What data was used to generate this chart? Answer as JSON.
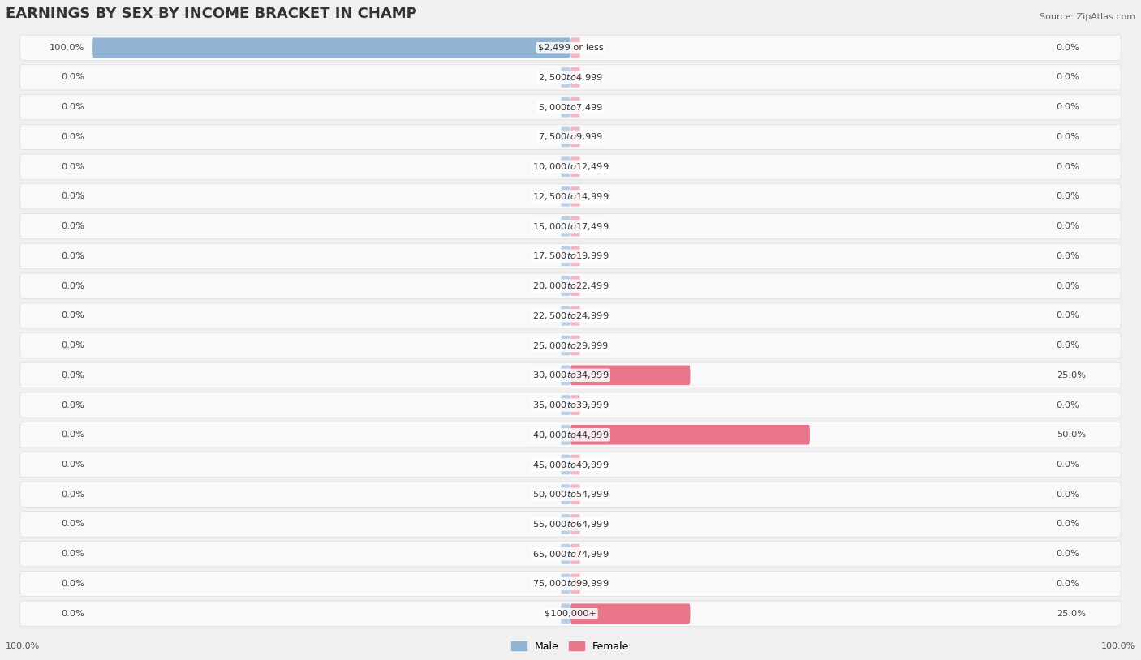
{
  "title": "EARNINGS BY SEX BY INCOME BRACKET IN CHAMP",
  "source": "Source: ZipAtlas.com",
  "categories": [
    "$2,499 or less",
    "$2,500 to $4,999",
    "$5,000 to $7,499",
    "$7,500 to $9,999",
    "$10,000 to $12,499",
    "$12,500 to $14,999",
    "$15,000 to $17,499",
    "$17,500 to $19,999",
    "$20,000 to $22,499",
    "$22,500 to $24,999",
    "$25,000 to $29,999",
    "$30,000 to $34,999",
    "$35,000 to $39,999",
    "$40,000 to $44,999",
    "$45,000 to $49,999",
    "$50,000 to $54,999",
    "$55,000 to $64,999",
    "$65,000 to $74,999",
    "$75,000 to $99,999",
    "$100,000+"
  ],
  "male_values": [
    100.0,
    0.0,
    0.0,
    0.0,
    0.0,
    0.0,
    0.0,
    0.0,
    0.0,
    0.0,
    0.0,
    0.0,
    0.0,
    0.0,
    0.0,
    0.0,
    0.0,
    0.0,
    0.0,
    0.0
  ],
  "female_values": [
    0.0,
    0.0,
    0.0,
    0.0,
    0.0,
    0.0,
    0.0,
    0.0,
    0.0,
    0.0,
    0.0,
    25.0,
    0.0,
    50.0,
    0.0,
    0.0,
    0.0,
    0.0,
    0.0,
    25.0
  ],
  "male_color": "#92b4d4",
  "female_color": "#e8758a",
  "female_light_color": "#f2b8c2",
  "male_light_color": "#b8d0e8",
  "bg_color": "#f0f0f0",
  "row_bg": "#ffffff",
  "row_alt_bg": "#f5f5f5",
  "title_fontsize": 13,
  "label_fontsize": 8.5,
  "axis_label_fontsize": 8,
  "max_value": 100.0,
  "x_axis_left_label": "100.0%",
  "x_axis_right_label": "100.0%"
}
